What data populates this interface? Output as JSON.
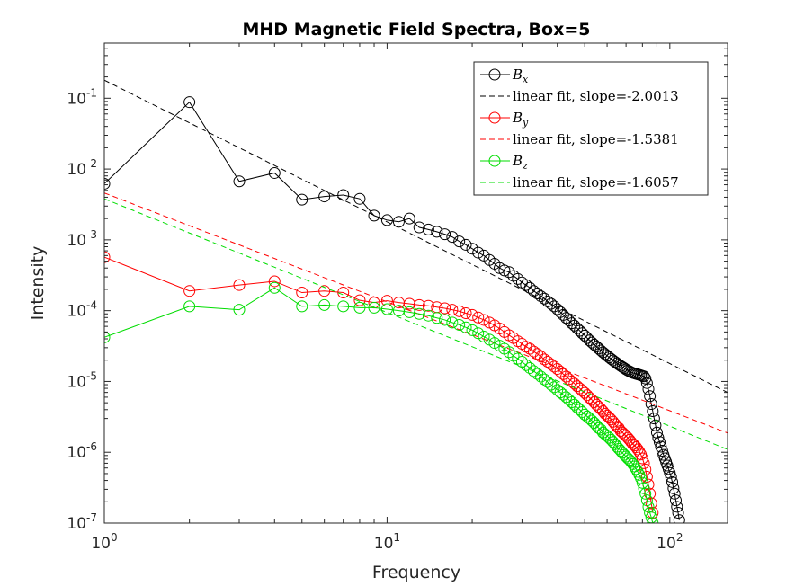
{
  "chart_data": {
    "type": "scatter",
    "title": "MHD Magnetic Field Spectra, Box=5",
    "xlabel": "Frequency",
    "ylabel": "Intensity",
    "xscale": "log",
    "yscale": "log",
    "xlim": [
      1,
      160
    ],
    "ylim": [
      1e-07,
      0.6
    ],
    "x_ticks": [
      {
        "base": "10",
        "exp": "0",
        "value": 1
      },
      {
        "base": "10",
        "exp": "1",
        "value": 10
      },
      {
        "base": "10",
        "exp": "2",
        "value": 100
      }
    ],
    "y_ticks": [
      {
        "base": "10",
        "exp": "-7",
        "value": 1e-07
      },
      {
        "base": "10",
        "exp": "-6",
        "value": 1e-06
      },
      {
        "base": "10",
        "exp": "-5",
        "value": 1e-05
      },
      {
        "base": "10",
        "exp": "-4",
        "value": 0.0001
      },
      {
        "base": "10",
        "exp": "-3",
        "value": 0.001
      },
      {
        "base": "10",
        "exp": "-2",
        "value": 0.01
      },
      {
        "base": "10",
        "exp": "-1",
        "value": 0.1
      }
    ],
    "grid": false,
    "legend_position": "top-right",
    "series": [
      {
        "name": "B_x",
        "sym": "B",
        "sub": "x",
        "color": "#000000",
        "marker": "circle",
        "x": [
          1,
          2,
          3,
          4,
          5,
          6,
          7,
          8,
          9,
          10,
          11,
          12,
          13,
          14,
          15,
          16,
          17,
          18,
          19,
          20,
          21,
          22,
          23,
          24,
          25,
          26,
          27,
          28,
          29,
          30,
          31,
          32,
          33,
          34,
          35,
          36,
          37,
          38,
          39,
          40,
          41,
          42,
          43,
          44,
          45,
          46,
          47,
          48,
          49,
          50,
          51,
          52,
          53,
          54,
          55,
          56,
          57,
          58,
          59,
          60,
          61,
          62,
          63,
          64,
          65,
          66,
          67,
          68,
          69,
          70,
          71,
          72,
          73,
          74,
          75,
          76,
          77,
          78,
          79,
          80,
          81,
          82,
          83,
          84,
          85,
          86,
          87,
          88,
          89,
          90,
          91,
          92,
          93,
          94,
          95,
          96,
          97,
          98,
          99,
          100,
          101,
          102,
          103,
          104,
          105,
          106,
          107,
          108
        ],
        "y": [
          0.0062,
          0.088,
          0.0067,
          0.0088,
          0.0037,
          0.0041,
          0.0043,
          0.0038,
          0.0022,
          0.0019,
          0.0018,
          0.002,
          0.0015,
          0.0014,
          0.0013,
          0.0012,
          0.0011,
          0.00095,
          0.00085,
          0.00075,
          0.00066,
          0.0006,
          0.00052,
          0.00046,
          0.0004,
          0.00037,
          0.00035,
          0.00031,
          0.00028,
          0.00025,
          0.00023,
          0.00021,
          0.00019,
          0.000175,
          0.00016,
          0.000148,
          0.000135,
          0.000125,
          0.000115,
          0.000105,
          9.55e-05,
          8.7e-05,
          7.9e-05,
          7.25e-05,
          6.65e-05,
          6.15e-05,
          5.65e-05,
          5.2e-05,
          4.8e-05,
          4.45e-05,
          4.1e-05,
          3.8e-05,
          3.55e-05,
          3.32e-05,
          3.11e-05,
          2.92e-05,
          2.74e-05,
          2.58e-05,
          2.44e-05,
          2.31e-05,
          2.19e-05,
          2.08e-05,
          1.98e-05,
          1.89e-05,
          1.81e-05,
          1.73e-05,
          1.66e-05,
          1.6e-05,
          1.54e-05,
          1.48e-05,
          1.43e-05,
          1.39e-05,
          1.35e-05,
          1.32e-05,
          1.3e-05,
          1.28e-05,
          1.26e-05,
          1.24e-05,
          1.22e-05,
          1.2e-05,
          1.18e-05,
          1.1e-05,
          9.5e-06,
          7.8e-06,
          6.2e-06,
          4.8e-06,
          3.8e-06,
          3e-06,
          2.4e-06,
          1.9e-06,
          1.6e-06,
          1.4e-06,
          1.2e-06,
          1.05e-06,
          9.2e-07,
          8.2e-07,
          7.3e-07,
          6.5e-07,
          5.8e-07,
          5.1e-07,
          4.5e-07,
          3.8e-07,
          3.1e-07,
          2.6e-07,
          2.1e-07,
          1.7e-07,
          1.4e-07,
          1.1e-07
        ]
      },
      {
        "name": "linear fit, slope=-2.0013",
        "color": "#000000",
        "dashed": true,
        "slope": -2.0013,
        "intercept": 0.18,
        "x": [
          1,
          160
        ]
      },
      {
        "name": "B_y",
        "sym": "B",
        "sub": "y",
        "color": "#ff0000",
        "marker": "circle",
        "x": [
          1,
          2,
          3,
          4,
          5,
          6,
          7,
          8,
          9,
          10,
          11,
          12,
          13,
          14,
          15,
          16,
          17,
          18,
          19,
          20,
          21,
          22,
          23,
          24,
          25,
          26,
          27,
          28,
          29,
          30,
          31,
          32,
          33,
          34,
          35,
          36,
          37,
          38,
          39,
          40,
          41,
          42,
          43,
          44,
          45,
          46,
          47,
          48,
          49,
          50,
          51,
          52,
          53,
          54,
          55,
          56,
          57,
          58,
          59,
          60,
          61,
          62,
          63,
          64,
          65,
          66,
          67,
          68,
          69,
          70,
          71,
          72,
          73,
          74,
          75,
          76,
          77,
          78,
          79,
          80,
          81,
          82,
          83,
          84,
          85,
          86,
          87
        ],
        "y": [
          0.00057,
          0.00019,
          0.00023,
          0.00026,
          0.00018,
          0.00019,
          0.00018,
          0.00014,
          0.00013,
          0.000138,
          0.00013,
          0.000125,
          0.00012,
          0.000117,
          0.000112,
          0.000108,
          0.000103,
          9.8e-05,
          9.2e-05,
          8.7e-05,
          8e-05,
          7.4e-05,
          6.8e-05,
          6.2e-05,
          5.6e-05,
          5e-05,
          4.5e-05,
          4.1e-05,
          3.7e-05,
          3.4e-05,
          3.1e-05,
          2.9e-05,
          2.65e-05,
          2.45e-05,
          2.25e-05,
          2.05e-05,
          1.9e-05,
          1.75e-05,
          1.62e-05,
          1.5e-05,
          1.38e-05,
          1.27e-05,
          1.17e-05,
          1.08e-05,
          1e-05,
          9.3e-06,
          8.6e-06,
          8e-06,
          7.4e-06,
          6.9e-06,
          6.4e-06,
          5.9e-06,
          5.5e-06,
          5.1e-06,
          4.7e-06,
          4.4e-06,
          4.1e-06,
          3.8e-06,
          3.5e-06,
          3.3e-06,
          3.1e-06,
          2.9e-06,
          2.7e-06,
          2.5e-06,
          2.3e-06,
          2.2e-06,
          2e-06,
          1.9e-06,
          1.8e-06,
          1.7e-06,
          1.6e-06,
          1.5e-06,
          1.4e-06,
          1.3e-06,
          1.25e-06,
          1.18e-06,
          1.1e-06,
          1.02e-06,
          9.3e-07,
          8.2e-07,
          7e-07,
          5.7e-07,
          4.5e-07,
          3.5e-07,
          2.6e-07,
          1.9e-07,
          1.4e-07
        ]
      },
      {
        "name": "linear fit, slope=-1.5381",
        "color": "#ff0000",
        "dashed": true,
        "slope": -1.5381,
        "intercept": 0.0046,
        "x": [
          1,
          160
        ]
      },
      {
        "name": "B_z",
        "sym": "B",
        "sub": "z",
        "color": "#00dd00",
        "marker": "circle",
        "x": [
          1,
          2,
          3,
          4,
          5,
          6,
          7,
          8,
          9,
          10,
          11,
          12,
          13,
          14,
          15,
          16,
          17,
          18,
          19,
          20,
          21,
          22,
          23,
          24,
          25,
          26,
          27,
          28,
          29,
          30,
          31,
          32,
          33,
          34,
          35,
          36,
          37,
          38,
          39,
          40,
          41,
          42,
          43,
          44,
          45,
          46,
          47,
          48,
          49,
          50,
          51,
          52,
          53,
          54,
          55,
          56,
          57,
          58,
          59,
          60,
          61,
          62,
          63,
          64,
          65,
          66,
          67,
          68,
          69,
          70,
          71,
          72,
          73,
          74,
          75,
          76,
          77,
          78,
          79,
          80,
          81,
          82,
          83,
          84,
          85,
          86,
          87
        ],
        "y": [
          4.2e-05,
          0.000115,
          0.000103,
          0.00021,
          0.000115,
          0.00012,
          0.000115,
          0.00011,
          0.00011,
          0.000105,
          0.0001,
          9.5e-05,
          9e-05,
          8.5e-05,
          7.9e-05,
          7.4e-05,
          6.8e-05,
          6.3e-05,
          5.8e-05,
          5.3e-05,
          4.8e-05,
          4.3e-05,
          3.9e-05,
          3.5e-05,
          3.2e-05,
          2.9e-05,
          2.6e-05,
          2.3e-05,
          2.1e-05,
          1.9e-05,
          1.7e-05,
          1.55e-05,
          1.4e-05,
          1.28e-05,
          1.17e-05,
          1.07e-05,
          9.8e-06,
          9e-06,
          8.3e-06,
          7.6e-06,
          7e-06,
          6.5e-06,
          6e-06,
          5.5e-06,
          5.1e-06,
          4.7e-06,
          4.3e-06,
          4e-06,
          3.7e-06,
          3.4e-06,
          3.2e-06,
          3e-06,
          2.8e-06,
          2.6e-06,
          2.4e-06,
          2.2e-06,
          2.1e-06,
          1.9e-06,
          1.8e-06,
          1.7e-06,
          1.6e-06,
          1.5e-06,
          1.4e-06,
          1.3e-06,
          1.2e-06,
          1.12e-06,
          1.05e-06,
          9.8e-07,
          9.2e-07,
          8.7e-07,
          8.2e-07,
          7.8e-07,
          7.3e-07,
          6.8e-07,
          6.3e-07,
          5.8e-07,
          5.3e-07,
          4.8e-07,
          4.3e-07,
          3.7e-07,
          3.1e-07,
          2.6e-07,
          2.1e-07,
          1.7e-07,
          1.4e-07,
          1.2e-07,
          1e-07
        ]
      },
      {
        "name": "linear fit, slope=-1.6057",
        "color": "#00dd00",
        "dashed": true,
        "slope": -1.6057,
        "intercept": 0.0038,
        "x": [
          1,
          160
        ]
      }
    ]
  }
}
